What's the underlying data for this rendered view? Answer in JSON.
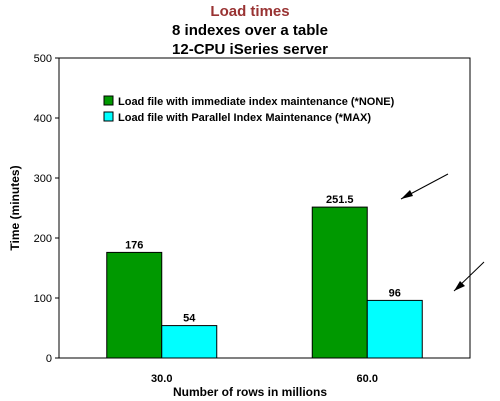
{
  "chart_data": {
    "type": "bar",
    "title": "Load times",
    "subtitles": [
      "8 indexes over a table",
      "12-CPU iSeries server"
    ],
    "xlabel": "Number of rows in millions",
    "ylabel": "Time (minutes)",
    "categories": [
      "30.0",
      "60.0"
    ],
    "ylim": [
      0,
      500
    ],
    "yticks": [
      0,
      100,
      200,
      300,
      400,
      500
    ],
    "grid": false,
    "legend_position": "top",
    "series": [
      {
        "name": "Load file with immediate index maintenance (*NONE)",
        "values": [
          176,
          251.5
        ],
        "labels": [
          "176",
          "251.5"
        ]
      },
      {
        "name": "Load file with Parallel Index Maintenance (*MAX)",
        "values": [
          54,
          96
        ],
        "labels": [
          "54",
          "96"
        ]
      }
    ]
  },
  "colors": {
    "title": "#993333",
    "series": [
      "#009900",
      "#00ffff"
    ],
    "axis": "#000000"
  }
}
